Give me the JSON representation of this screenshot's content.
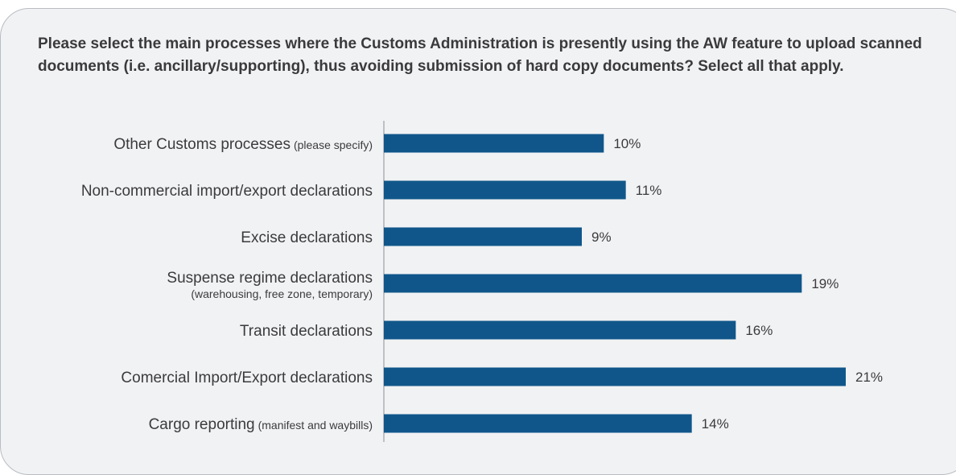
{
  "question": "Please select the main processes where the Customs Administration is presently using the AW feature to upload scanned documents (i.e. ancillary/supporting), thus avoiding submission of hard copy documents? Select all that apply.",
  "colors": {
    "bar": "#10568a",
    "axis": "#8a8d92",
    "background": "#f1f2f4"
  },
  "chart_data": {
    "type": "bar",
    "orientation": "horizontal",
    "title": "",
    "xlabel": "",
    "ylabel": "",
    "xlim": [
      0,
      21
    ],
    "grid": false,
    "legend": "none",
    "categories": [
      {
        "label": "Other Customs processes",
        "sub": "(please specify)",
        "sub_inline": true
      },
      {
        "label": "Non-commercial import/export declarations",
        "sub": "",
        "sub_inline": true
      },
      {
        "label": "Excise declarations",
        "sub": "",
        "sub_inline": true
      },
      {
        "label": "Suspense regime declarations",
        "sub": "(warehousing, free zone, temporary)",
        "sub_inline": false
      },
      {
        "label": "Transit declarations",
        "sub": "",
        "sub_inline": true
      },
      {
        "label": "Comercial Import/Export declarations",
        "sub": "",
        "sub_inline": true
      },
      {
        "label": "Cargo reporting",
        "sub": "(manifest and waybills)",
        "sub_inline": true
      }
    ],
    "values": [
      10,
      11,
      9,
      19,
      16,
      21,
      14
    ],
    "value_labels": [
      "10%",
      "11%",
      "9%",
      "19%",
      "16%",
      "21%",
      "14%"
    ]
  }
}
